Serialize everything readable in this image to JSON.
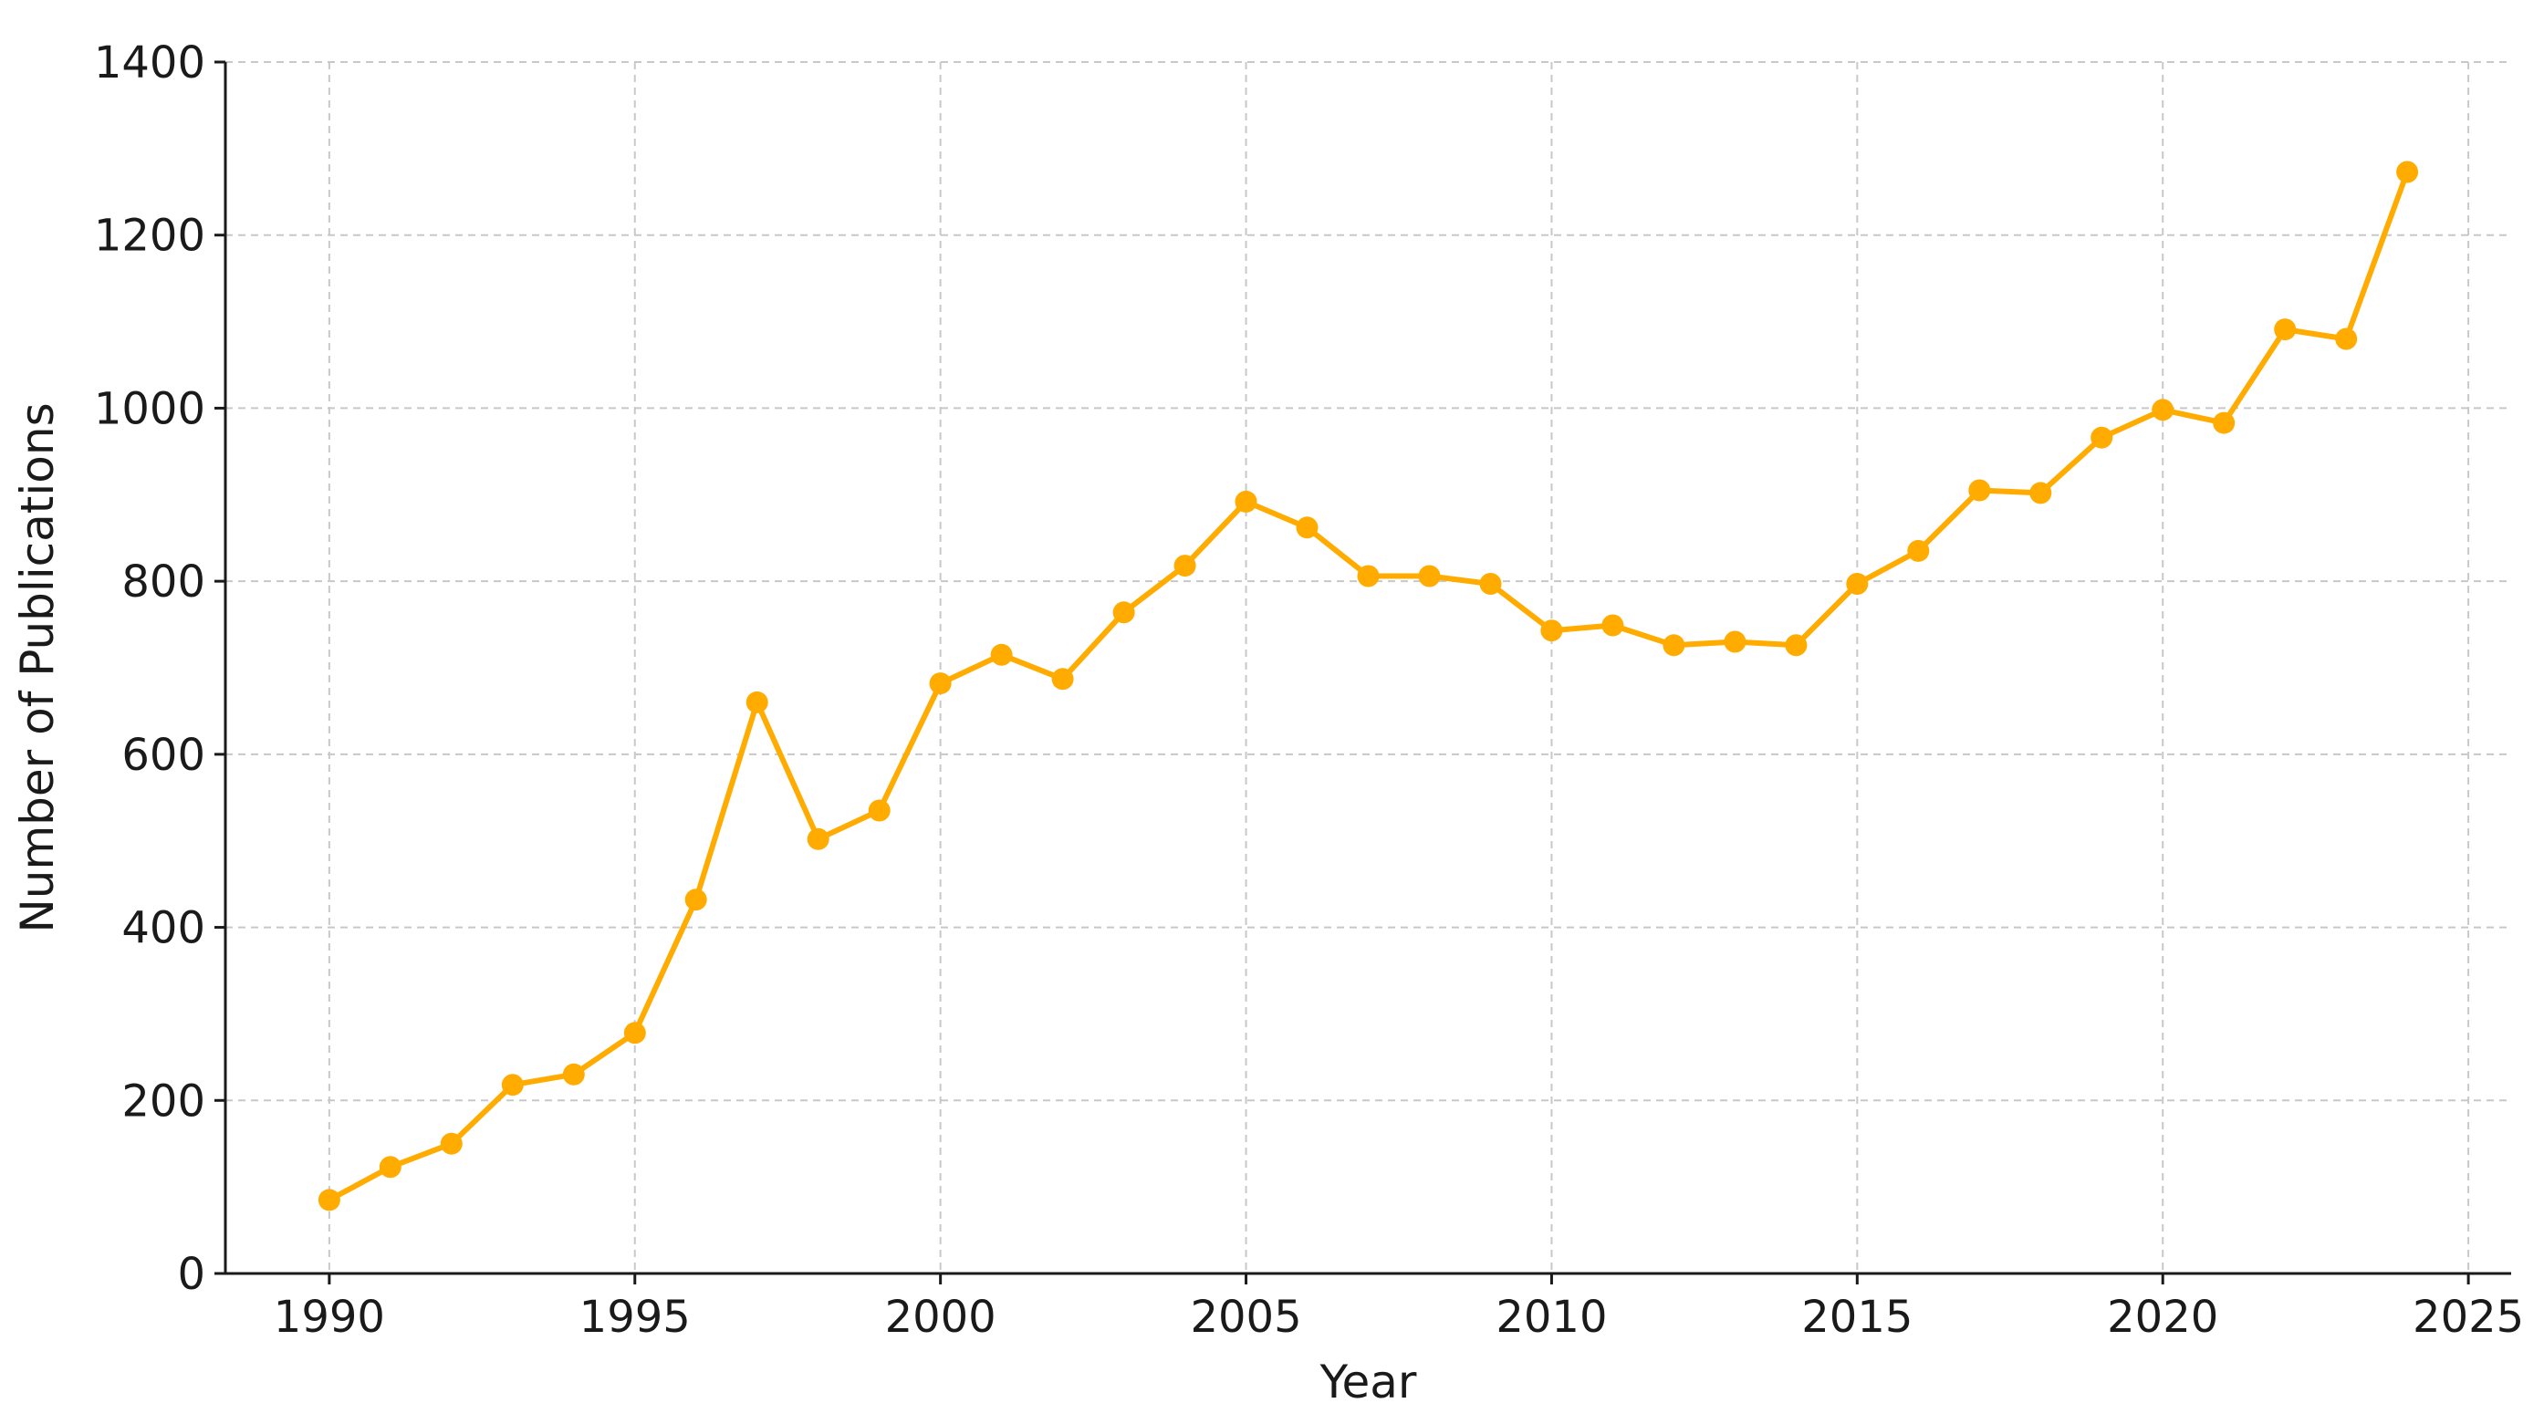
{
  "chart_data": {
    "type": "line",
    "title": "",
    "xlabel": "Year",
    "ylabel": "Number of Publications",
    "xlim": [
      1988.3,
      2025.7
    ],
    "ylim": [
      0,
      1400
    ],
    "xticks": [
      1990,
      1995,
      2000,
      2005,
      2010,
      2015,
      2020,
      2025
    ],
    "yticks": [
      0,
      200,
      400,
      600,
      800,
      1000,
      1200,
      1400
    ],
    "grid": true,
    "legend": "none",
    "color": "#FFAB00",
    "series": [
      {
        "x": [
          1990,
          1991,
          1992,
          1993,
          1994,
          1995,
          1996,
          1997,
          1998,
          1999,
          2000,
          2001,
          2002,
          2003,
          2004,
          2005,
          2006,
          2007,
          2008,
          2009,
          2010,
          2011,
          2012,
          2013,
          2014,
          2015,
          2016,
          2017,
          2018,
          2019,
          2020,
          2021,
          2022,
          2023,
          2024
        ],
        "values": [
          85,
          123,
          150,
          218,
          230,
          278,
          432,
          660,
          502,
          535,
          682,
          715,
          687,
          764,
          818,
          892,
          862,
          806,
          806,
          797,
          743,
          749,
          726,
          730,
          726,
          797,
          835,
          905,
          902,
          966,
          998,
          983,
          1091,
          1080,
          1273
        ]
      }
    ]
  }
}
